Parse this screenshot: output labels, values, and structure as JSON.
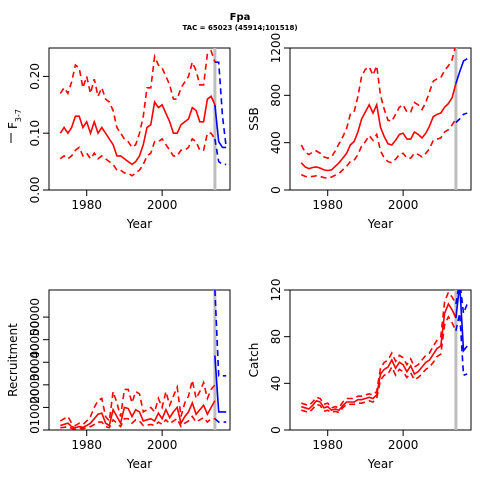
{
  "title": "Fpa",
  "subtitle": "TAC = 65023 (45914;101518)",
  "colors": {
    "estimate": "#ff0000",
    "forecast": "#0000ff",
    "current_year_marker": "#bebebe"
  },
  "chart_data": [
    {
      "type": "line",
      "ylabel_main": "F",
      "ylabel_sub": "3-7",
      "xlabel": "Year",
      "xlim": [
        1970,
        2018
      ],
      "ylim": [
        0,
        0.25
      ],
      "xticks": [
        "1980",
        "2000"
      ],
      "yticks": [
        "0.00",
        "0.10",
        "0.20"
      ],
      "current_year": 2014,
      "x": [
        1973,
        1974,
        1975,
        1976,
        1977,
        1978,
        1979,
        1980,
        1981,
        1982,
        1983,
        1984,
        1985,
        1986,
        1987,
        1988,
        1989,
        1990,
        1991,
        1992,
        1993,
        1994,
        1995,
        1996,
        1997,
        1998,
        1999,
        2000,
        2001,
        2002,
        2003,
        2004,
        2005,
        2006,
        2007,
        2008,
        2009,
        2010,
        2011,
        2012,
        2013,
        2014
      ],
      "series": [
        {
          "role": "estimate",
          "values": [
            0.1,
            0.11,
            0.1,
            0.11,
            0.13,
            0.13,
            0.11,
            0.12,
            0.1,
            0.12,
            0.1,
            0.11,
            0.1,
            0.09,
            0.08,
            0.06,
            0.06,
            0.055,
            0.05,
            0.045,
            0.05,
            0.06,
            0.08,
            0.11,
            0.115,
            0.155,
            0.145,
            0.15,
            0.135,
            0.12,
            0.1,
            0.1,
            0.115,
            0.12,
            0.125,
            0.145,
            0.14,
            0.12,
            0.12,
            0.16,
            0.165,
            0.15
          ]
        },
        {
          "role": "lower",
          "values": [
            0.055,
            0.06,
            0.055,
            0.06,
            0.07,
            0.075,
            0.06,
            0.065,
            0.055,
            0.065,
            0.055,
            0.06,
            0.055,
            0.05,
            0.045,
            0.035,
            0.035,
            0.03,
            0.03,
            0.025,
            0.03,
            0.035,
            0.045,
            0.06,
            0.065,
            0.085,
            0.085,
            0.09,
            0.08,
            0.07,
            0.06,
            0.06,
            0.07,
            0.07,
            0.075,
            0.09,
            0.085,
            0.07,
            0.07,
            0.1,
            0.1,
            0.09
          ]
        },
        {
          "role": "upper",
          "values": [
            0.17,
            0.18,
            0.17,
            0.19,
            0.22,
            0.215,
            0.18,
            0.2,
            0.17,
            0.195,
            0.165,
            0.18,
            0.16,
            0.155,
            0.14,
            0.11,
            0.1,
            0.09,
            0.085,
            0.075,
            0.08,
            0.1,
            0.13,
            0.18,
            0.18,
            0.235,
            0.22,
            0.215,
            0.2,
            0.185,
            0.16,
            0.16,
            0.18,
            0.19,
            0.2,
            0.225,
            0.21,
            0.185,
            0.185,
            0.24,
            0.245,
            0.225
          ]
        }
      ],
      "forecast_x": [
        2014,
        2015,
        2016,
        2017
      ],
      "forecast": [
        {
          "role": "estimate",
          "values": [
            0.15,
            0.085,
            0.075,
            0.075
          ]
        },
        {
          "role": "lower",
          "values": [
            0.09,
            0.05,
            0.045,
            0.045
          ]
        },
        {
          "role": "upper",
          "values": [
            0.225,
            0.225,
            0.13,
            0.075
          ]
        }
      ]
    },
    {
      "type": "line",
      "ylabel_main": "SSB",
      "ylabel_sub": "",
      "xlabel": "Year",
      "xlim": [
        1970,
        2018
      ],
      "ylim": [
        0,
        1200
      ],
      "xticks": [
        "1980",
        "2000"
      ],
      "yticks": [
        "0",
        "400",
        "800",
        "1200"
      ],
      "current_year": 2014,
      "x": [
        1973,
        1974,
        1975,
        1976,
        1977,
        1978,
        1979,
        1980,
        1981,
        1982,
        1983,
        1984,
        1985,
        1986,
        1987,
        1988,
        1989,
        1990,
        1991,
        1992,
        1993,
        1994,
        1995,
        1996,
        1997,
        1998,
        1999,
        2000,
        2001,
        2002,
        2003,
        2004,
        2005,
        2006,
        2007,
        2008,
        2009,
        2010,
        2011,
        2012,
        2013,
        2014
      ],
      "series": [
        {
          "role": "estimate",
          "values": [
            230,
            195,
            180,
            190,
            195,
            185,
            170,
            165,
            170,
            200,
            230,
            270,
            310,
            380,
            410,
            490,
            600,
            660,
            720,
            650,
            720,
            530,
            450,
            390,
            380,
            420,
            470,
            480,
            430,
            430,
            490,
            470,
            440,
            480,
            540,
            620,
            640,
            650,
            700,
            730,
            780,
            900
          ]
        },
        {
          "role": "lower",
          "values": [
            130,
            115,
            110,
            115,
            120,
            115,
            105,
            100,
            110,
            125,
            140,
            170,
            200,
            240,
            250,
            300,
            370,
            410,
            460,
            420,
            470,
            330,
            270,
            240,
            230,
            260,
            300,
            310,
            270,
            270,
            310,
            300,
            280,
            310,
            350,
            420,
            430,
            440,
            490,
            510,
            550,
            600
          ]
        },
        {
          "role": "upper",
          "values": [
            380,
            320,
            300,
            320,
            330,
            310,
            280,
            270,
            280,
            330,
            390,
            450,
            520,
            640,
            660,
            790,
            960,
            1020,
            1040,
            970,
            1050,
            800,
            680,
            590,
            580,
            640,
            700,
            720,
            660,
            660,
            740,
            720,
            680,
            740,
            830,
            920,
            940,
            950,
            1010,
            1050,
            1100,
            1230
          ]
        }
      ],
      "forecast_x": [
        2014,
        2015,
        2016,
        2017
      ],
      "forecast": [
        {
          "role": "estimate",
          "values": [
            900,
            1000,
            1090,
            1110
          ]
        },
        {
          "role": "lower",
          "values": [
            570,
            600,
            640,
            650
          ]
        },
        {
          "role": "upper",
          "values": [
            1230,
            1350,
            1400,
            1420
          ]
        }
      ]
    },
    {
      "type": "line",
      "ylabel_main": "Recruitment",
      "ylabel_sub": "",
      "xlabel": "Year",
      "xlim": [
        1970,
        2018
      ],
      "ylim": [
        0,
        62000
      ],
      "xticks": [
        "1980",
        "2000"
      ],
      "yticks": [
        "0",
        "10000",
        "20000",
        "30000",
        "40000",
        "50000"
      ],
      "current_year": 2014,
      "x": [
        1973,
        1974,
        1975,
        1976,
        1977,
        1978,
        1979,
        1980,
        1981,
        1982,
        1983,
        1984,
        1985,
        1986,
        1987,
        1988,
        1989,
        1990,
        1991,
        1992,
        1993,
        1994,
        1995,
        1996,
        1997,
        1998,
        1999,
        2000,
        2001,
        2002,
        2003,
        2004,
        2005,
        2006,
        2007,
        2008,
        2009,
        2010,
        2011,
        2012,
        2013,
        2014
      ],
      "series": [
        {
          "role": "estimate",
          "values": [
            2000,
            2500,
            3000,
            1500,
            1000,
            1500,
            1200,
            2000,
            3000,
            5000,
            7000,
            7500,
            3000,
            2000,
            9000,
            6000,
            3000,
            10000,
            9500,
            6000,
            9000,
            8000,
            4000,
            4500,
            5000,
            4000,
            7500,
            5000,
            9000,
            5500,
            8000,
            10000,
            3000,
            6000,
            8000,
            12000,
            7000,
            9000,
            11000,
            7000,
            10000,
            13000
          ]
        },
        {
          "role": "lower",
          "values": [
            1000,
            1200,
            1500,
            700,
            500,
            800,
            600,
            1000,
            1500,
            2500,
            3500,
            3500,
            1500,
            1000,
            4500,
            3000,
            1500,
            5000,
            5000,
            3000,
            4500,
            4000,
            2000,
            2200,
            2500,
            2000,
            3500,
            2500,
            4500,
            2800,
            4000,
            5000,
            1500,
            3000,
            4000,
            6000,
            3500,
            4500,
            5500,
            3500,
            5000,
            5000
          ]
        },
        {
          "role": "upper",
          "values": [
            4000,
            5000,
            6000,
            3000,
            2000,
            3000,
            2400,
            4000,
            6000,
            10000,
            13000,
            14000,
            6000,
            4000,
            17000,
            12000,
            6000,
            18000,
            18000,
            12000,
            17000,
            16000,
            8000,
            9000,
            10000,
            8000,
            14000,
            10000,
            17000,
            11000,
            15000,
            19000,
            6000,
            12000,
            15000,
            22000,
            14000,
            17000,
            21000,
            14000,
            18000,
            20000
          ]
        }
      ],
      "forecast_x": [
        2014,
        2015,
        2016,
        2017
      ],
      "forecast": [
        {
          "role": "estimate",
          "values": [
            33000,
            8000,
            8000,
            8000
          ]
        },
        {
          "role": "lower",
          "values": [
            5000,
            3500,
            3500,
            3500
          ]
        },
        {
          "role": "upper",
          "values": [
            62000,
            24000,
            24000,
            24000
          ]
        }
      ]
    },
    {
      "type": "line",
      "ylabel_main": "Catch",
      "ylabel_sub": "",
      "xlabel": "Year",
      "xlim": [
        1970,
        2018
      ],
      "ylim": [
        0,
        120
      ],
      "xticks": [
        "1980",
        "2000"
      ],
      "yticks": [
        "0",
        "40",
        "80",
        "120"
      ],
      "current_year": 2014,
      "x": [
        1973,
        1974,
        1975,
        1976,
        1977,
        1978,
        1979,
        1980,
        1981,
        1982,
        1983,
        1984,
        1985,
        1986,
        1987,
        1988,
        1989,
        1990,
        1991,
        1992,
        1993,
        1994,
        1995,
        1996,
        1997,
        1998,
        1999,
        2000,
        2001,
        2002,
        2003,
        2004,
        2005,
        2006,
        2007,
        2008,
        2009,
        2010,
        2011,
        2012,
        2013,
        2014
      ],
      "series": [
        {
          "role": "estimate",
          "values": [
            20,
            19,
            18,
            21,
            25,
            24,
            19,
            20,
            17,
            18,
            17,
            21,
            24,
            24,
            24,
            26,
            26,
            27,
            28,
            27,
            30,
            48,
            52,
            54,
            60,
            53,
            58,
            56,
            50,
            55,
            48,
            50,
            54,
            58,
            60,
            65,
            70,
            72,
            100,
            108,
            103,
            96
          ]
        },
        {
          "role": "lower",
          "values": [
            17,
            16,
            15,
            18,
            22,
            21,
            16,
            17,
            15,
            16,
            15,
            19,
            22,
            22,
            22,
            23,
            23,
            24,
            25,
            24,
            27,
            43,
            47,
            48,
            54,
            47,
            52,
            50,
            45,
            49,
            43,
            45,
            48,
            52,
            54,
            58,
            63,
            65,
            90,
            97,
            92,
            85
          ]
        },
        {
          "role": "upper",
          "values": [
            23,
            22,
            21,
            24,
            28,
            27,
            22,
            23,
            19,
            20,
            19,
            24,
            27,
            27,
            27,
            29,
            29,
            30,
            31,
            30,
            33,
            53,
            58,
            60,
            66,
            59,
            64,
            62,
            56,
            61,
            54,
            56,
            60,
            64,
            66,
            72,
            77,
            80,
            110,
            118,
            114,
            108
          ]
        }
      ],
      "forecast_x": [
        2014,
        2015,
        2016,
        2017
      ],
      "forecast": [
        {
          "role": "estimate",
          "values": [
            96,
            125,
            68,
            72
          ]
        },
        {
          "role": "lower",
          "values": [
            85,
            100,
            47,
            48
          ]
        },
        {
          "role": "upper",
          "values": [
            108,
            128,
            100,
            108
          ]
        }
      ]
    }
  ]
}
